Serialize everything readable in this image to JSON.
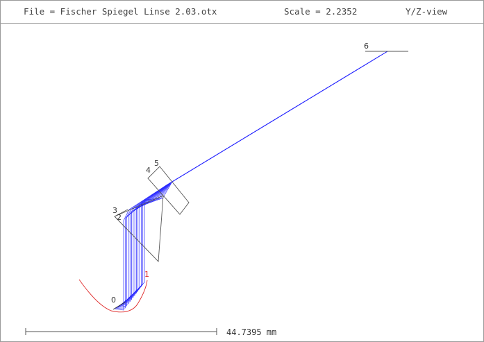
{
  "header": {
    "file": "File = Fischer Spiegel Linse 2.03.otx",
    "scale": "Scale = 2.2352",
    "view": "Y/Z-view"
  },
  "surface_labels": [
    "0",
    "1",
    "2",
    "3",
    "4",
    "5",
    "6"
  ],
  "scale_bar": {
    "label": "44.7395 mm"
  },
  "colors": {
    "rays": "#2a2aff",
    "optics": "#555555",
    "highlight_surface": "#e03030",
    "frame": "#9a9a9a",
    "text": "#444444"
  }
}
